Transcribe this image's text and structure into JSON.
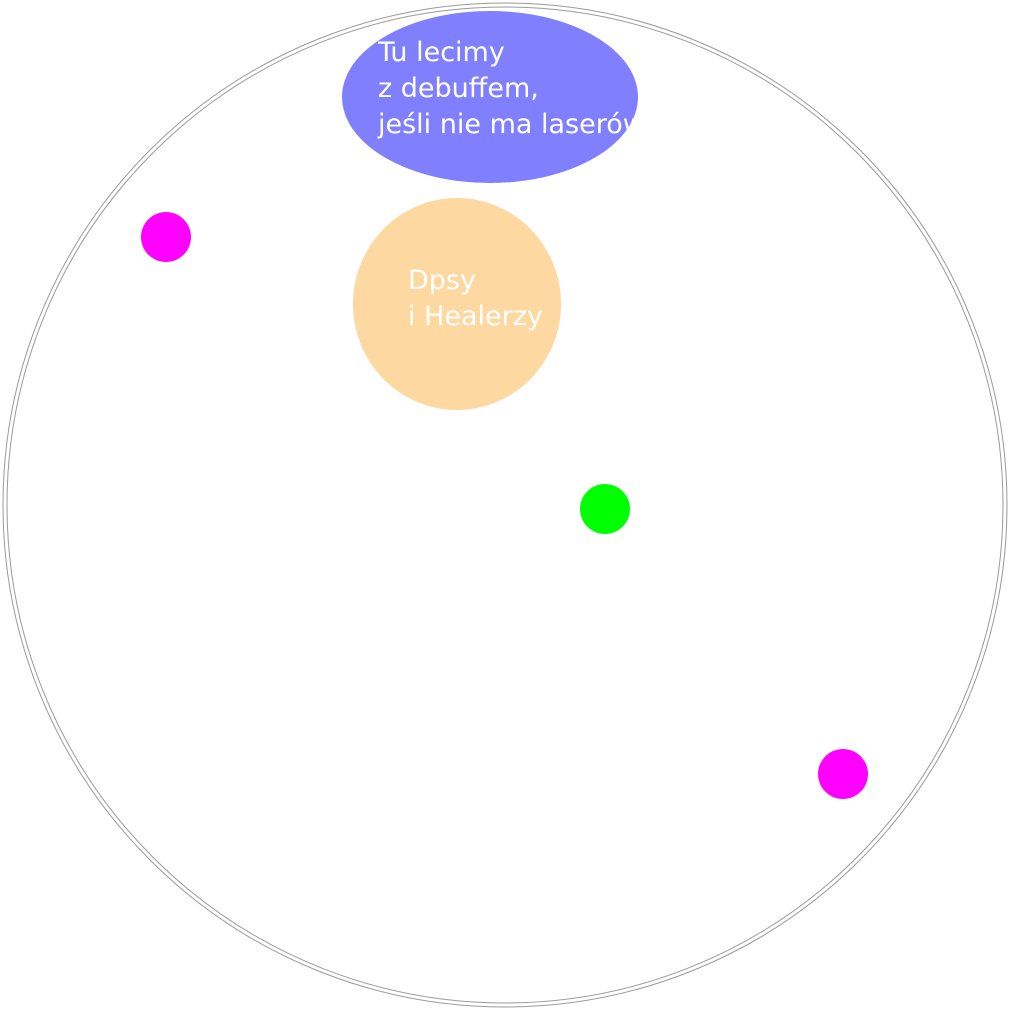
{
  "colors": {
    "background": "#ffffff",
    "arena_outline": "#9a9a9a",
    "debuff_zone": "#8080ff",
    "group_zone": "#fdd8a0",
    "marker_magenta": "#ff00ff",
    "marker_green": "#00ff00",
    "label_text": "#ffffff"
  },
  "zones": {
    "debuff": {
      "lines": [
        "Tu lecimy",
        "z debuffem,",
        "jeśli nie ma laserów"
      ]
    },
    "group": {
      "lines": [
        "Dpsy",
        "i Healerzy"
      ]
    }
  },
  "markers": [
    {
      "id": "magenta-top-left",
      "color": "magenta"
    },
    {
      "id": "green-center",
      "color": "green"
    },
    {
      "id": "magenta-bottom-right",
      "color": "magenta"
    }
  ]
}
